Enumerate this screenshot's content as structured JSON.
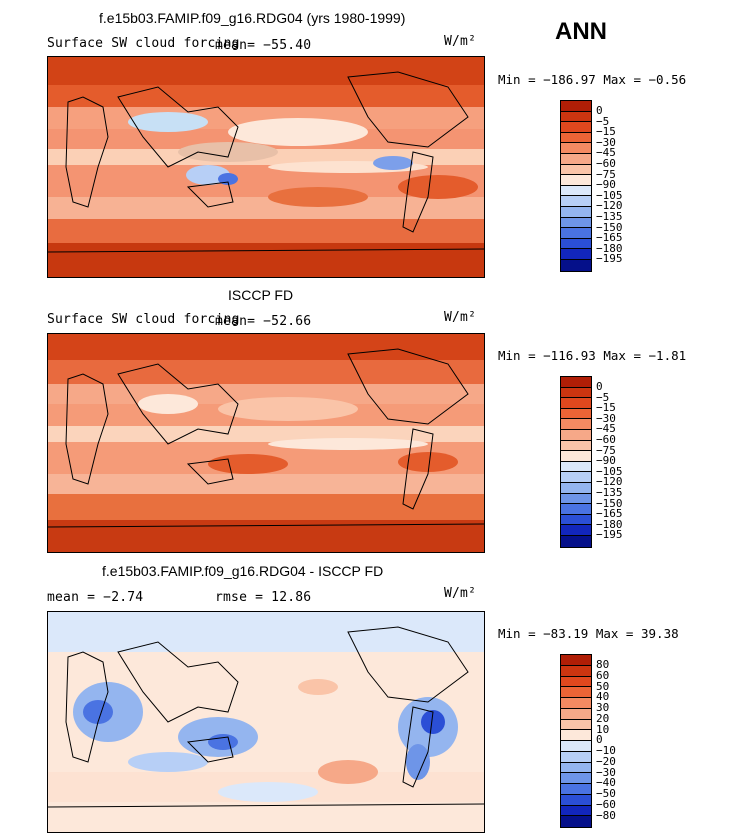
{
  "season": "ANN",
  "units": "W/m²",
  "panels": [
    {
      "title": "f.e15b03.FAMIP.f09_g16.RDG04 (yrs 1980-1999)",
      "variable": "Surface SW cloud forcing",
      "mean_text": "mean= −55.40",
      "range_text": "Min = −186.97 Max =  −0.56",
      "colorbar_labels": [
        "0",
        "−5",
        "−15",
        "−30",
        "−45",
        "−60",
        "−75",
        "−90",
        "−105",
        "−120",
        "−135",
        "−150",
        "−165",
        "−180",
        "−195"
      ],
      "colorbar_colors": [
        "#b01e06",
        "#cc3510",
        "#e0481e",
        "#ec6436",
        "#f48a62",
        "#f6a888",
        "#fac4a8",
        "#fde8da",
        "#dbe8fa",
        "#b7cff6",
        "#94b5ef",
        "#6e95e8",
        "#4a73e2",
        "#2b4fd6",
        "#1226bc",
        "#05108a"
      ]
    },
    {
      "title": "ISCCP FD",
      "variable": "Surface SW cloud forcing",
      "mean_text": "mean= −52.66",
      "range_text": "Min = −116.93 Max =  −1.81",
      "colorbar_labels": [
        "0",
        "−5",
        "−15",
        "−30",
        "−45",
        "−60",
        "−75",
        "−90",
        "−105",
        "−120",
        "−135",
        "−150",
        "−165",
        "−180",
        "−195"
      ],
      "colorbar_colors": [
        "#b01e06",
        "#cc3510",
        "#e0481e",
        "#ec6436",
        "#f48a62",
        "#f6a888",
        "#fac4a8",
        "#fde8da",
        "#dbe8fa",
        "#b7cff6",
        "#94b5ef",
        "#6e95e8",
        "#4a73e2",
        "#2b4fd6",
        "#1226bc",
        "#05108a"
      ]
    },
    {
      "title": "f.e15b03.FAMIP.f09_g16.RDG04 - ISCCP FD",
      "mean_text": "mean =   −2.74",
      "rmse_text": "rmse =   12.86",
      "range_text": "Min = −83.19 Max =  39.38",
      "colorbar_labels": [
        "80",
        "60",
        "50",
        "40",
        "30",
        "20",
        "10",
        "0",
        "−10",
        "−20",
        "−30",
        "−40",
        "−50",
        "−60",
        "−80"
      ],
      "colorbar_colors": [
        "#b01e06",
        "#cc3510",
        "#e0481e",
        "#ec6436",
        "#f48a62",
        "#f6a888",
        "#fac4a8",
        "#fde8da",
        "#dbe8fa",
        "#b7cff6",
        "#94b5ef",
        "#6e95e8",
        "#4a73e2",
        "#2b4fd6",
        "#1226bc",
        "#05108a"
      ]
    }
  ]
}
